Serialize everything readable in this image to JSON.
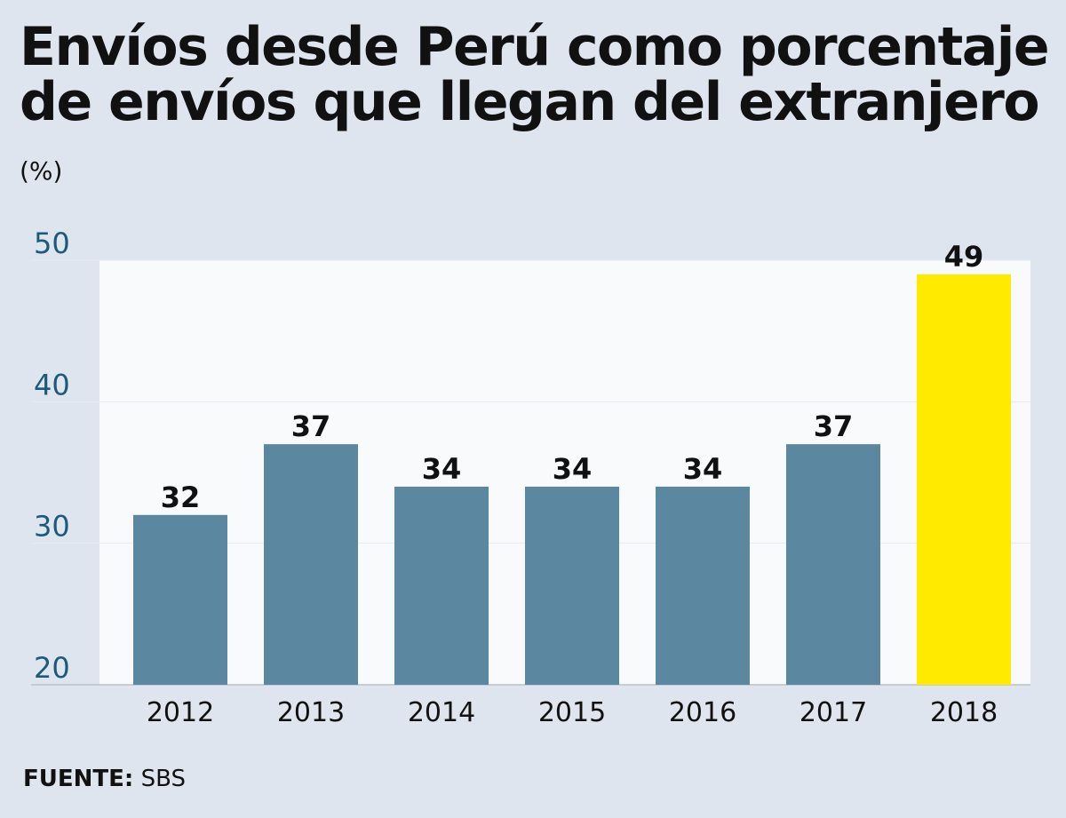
{
  "title": "Envíos desde Perú como porcentaje de envíos que llegan del extranjero",
  "unit": "(%)",
  "source": {
    "label": "FUENTE:",
    "value": "SBS"
  },
  "colors": {
    "background": "#dfe5ee",
    "plot_background": "#f9fafb",
    "bar": "#5b87a1",
    "highlight": "#ffea00",
    "tick_label": "#1b5a78"
  },
  "chart_data": {
    "type": "bar",
    "title": "Envíos desde Perú como porcentaje de envíos que llegan del extranjero",
    "ylabel": "(%)",
    "xlabel": "",
    "categories": [
      "2012",
      "2013",
      "2014",
      "2015",
      "2016",
      "2017",
      "2018"
    ],
    "values": [
      32,
      37,
      34,
      34,
      34,
      37,
      49
    ],
    "highlight": [
      "2018"
    ],
    "ylim": [
      20,
      50
    ],
    "yticks": [
      20,
      30,
      40,
      50
    ],
    "grid": true,
    "data_labels": true
  }
}
